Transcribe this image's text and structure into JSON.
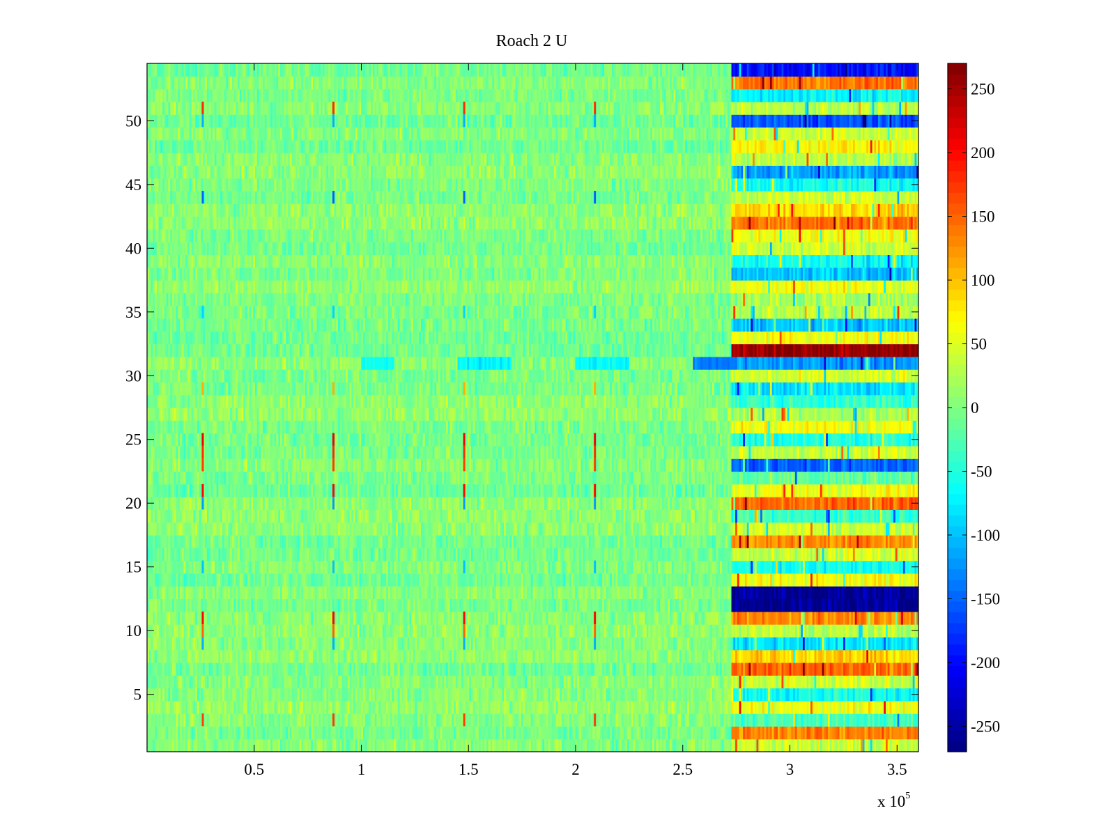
{
  "chart_data": {
    "type": "heatmap",
    "title": "Roach 2 U",
    "xlabel": "",
    "ylabel": "",
    "x_exponent_label": "x 10",
    "x_exponent": "5",
    "xlim": [
      0,
      3.6
    ],
    "ylim": [
      0.5,
      54.5
    ],
    "x_ticks": [
      0.5,
      1,
      1.5,
      2,
      2.5,
      3,
      3.5
    ],
    "x_tick_labels": [
      "0.5",
      "1",
      "1.5",
      "2",
      "2.5",
      "3",
      "3.5"
    ],
    "y_ticks": [
      5,
      10,
      15,
      20,
      25,
      30,
      35,
      40,
      45,
      50
    ],
    "y_tick_labels": [
      "5",
      "10",
      "15",
      "20",
      "25",
      "30",
      "35",
      "40",
      "45",
      "50"
    ],
    "rows": 54,
    "colormap": "jet",
    "color_range": [
      -270,
      270
    ],
    "colorbar_ticks": [
      250,
      200,
      150,
      100,
      50,
      0,
      -50,
      -100,
      -150,
      -200,
      -250
    ],
    "colorbar_tick_labels": [
      "250",
      "200",
      "150",
      "100",
      "50",
      "0",
      "-50",
      "-100",
      "-150",
      "-200",
      "-250"
    ],
    "regime_change_x": 2.73,
    "baseline_level": 0,
    "baseline_noise": 25,
    "right_region_row_levels": {
      "1": 40,
      "2": 130,
      "3": -30,
      "4": 60,
      "5": -60,
      "6": 40,
      "7": 150,
      "8": 90,
      "9": -80,
      "10": 30,
      "11": 130,
      "12": -260,
      "13": -260,
      "14": 60,
      "15": -60,
      "16": 40,
      "17": 130,
      "18": 40,
      "19": -40,
      "20": 150,
      "21": 60,
      "22": -20,
      "23": -150,
      "24": 40,
      "25": -50,
      "26": 60,
      "27": 20,
      "28": -40,
      "29": -80,
      "30": 40,
      "31": -120,
      "32": 260,
      "33": 60,
      "34": -100,
      "35": 30,
      "36": 20,
      "37": 60,
      "38": -100,
      "39": -60,
      "40": 40,
      "41": 60,
      "42": 140,
      "43": 90,
      "44": 40,
      "45": -60,
      "46": -120,
      "47": 30,
      "48": 70,
      "49": 40,
      "50": -160,
      "51": 30,
      "52": -70,
      "53": 140,
      "54": -200
    },
    "row_31_cool_band": [
      {
        "x_start": 1.0,
        "x_end": 1.15,
        "value": -60
      },
      {
        "x_start": 1.45,
        "x_end": 1.7,
        "value": -70
      },
      {
        "x_start": 2.0,
        "x_end": 2.25,
        "value": -70
      },
      {
        "x_start": 2.55,
        "x_end": 2.73,
        "value": -140
      }
    ],
    "periodic_spike_x": [
      0.26,
      0.87,
      1.48,
      2.09
    ],
    "periodic_spikes": [
      {
        "row": 51,
        "value": 180
      },
      {
        "row": 50,
        "value": -110
      },
      {
        "row": 44,
        "value": -150
      },
      {
        "row": 35,
        "value": -90
      },
      {
        "row": 29,
        "value": 110
      },
      {
        "row": 25,
        "value": 210
      },
      {
        "row": 24,
        "value": 180
      },
      {
        "row": 23,
        "value": 170
      },
      {
        "row": 21,
        "value": 200
      },
      {
        "row": 20,
        "value": -120
      },
      {
        "row": 15,
        "value": -100
      },
      {
        "row": 11,
        "value": 200
      },
      {
        "row": 10,
        "value": 150
      },
      {
        "row": 9,
        "value": -110
      },
      {
        "row": 3,
        "value": 170
      }
    ]
  }
}
